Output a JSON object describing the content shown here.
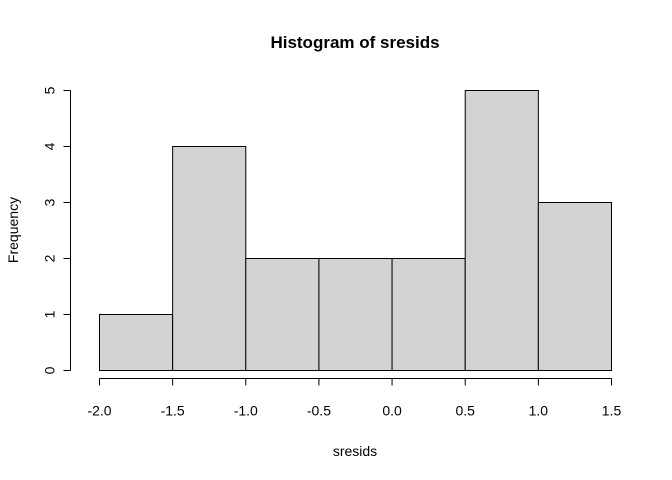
{
  "chart_data": {
    "type": "bar",
    "subtype": "histogram",
    "title": "Histogram of sresids",
    "xlabel": "sresids",
    "ylabel": "Frequency",
    "bins": [
      {
        "from": -2.0,
        "to": -1.5,
        "count": 1
      },
      {
        "from": -1.5,
        "to": -1.0,
        "count": 4
      },
      {
        "from": -1.0,
        "to": -0.5,
        "count": 2
      },
      {
        "from": -0.5,
        "to": 0.0,
        "count": 2
      },
      {
        "from": 0.0,
        "to": 0.5,
        "count": 2
      },
      {
        "from": 0.5,
        "to": 1.0,
        "count": 5
      },
      {
        "from": 1.0,
        "to": 1.5,
        "count": 3
      }
    ],
    "x_ticks": [
      "-2.0",
      "-1.5",
      "-1.0",
      "-0.5",
      "0.0",
      "0.5",
      "1.0",
      "1.5"
    ],
    "y_ticks": [
      "0",
      "1",
      "2",
      "3",
      "4",
      "5"
    ],
    "xlim": [
      -2.0,
      1.5
    ],
    "ylim": [
      0,
      5
    ],
    "bar_color": "#d3d3d3",
    "grid": false,
    "legend": "none"
  }
}
